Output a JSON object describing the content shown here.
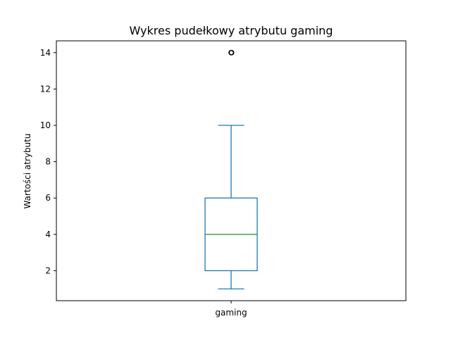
{
  "chart_data": {
    "type": "box",
    "title": "Wykres pudełkowy atrybutu gaming",
    "xlabel": "",
    "ylabel": "Wartości atrybutu",
    "categories": [
      "gaming"
    ],
    "ylim": [
      0.35,
      14.65
    ],
    "yticks": [
      2,
      4,
      6,
      8,
      10,
      12,
      14
    ],
    "grid": false,
    "boxes": [
      {
        "category": "gaming",
        "whisker_low": 1,
        "q1": 2,
        "median": 4,
        "q3": 6,
        "whisker_high": 10,
        "outliers": [
          14
        ]
      }
    ],
    "colors": {
      "box": "#1f77b4",
      "median": "#2ca02c",
      "whisker": "#1f77b4",
      "outlier": "#000000"
    }
  }
}
